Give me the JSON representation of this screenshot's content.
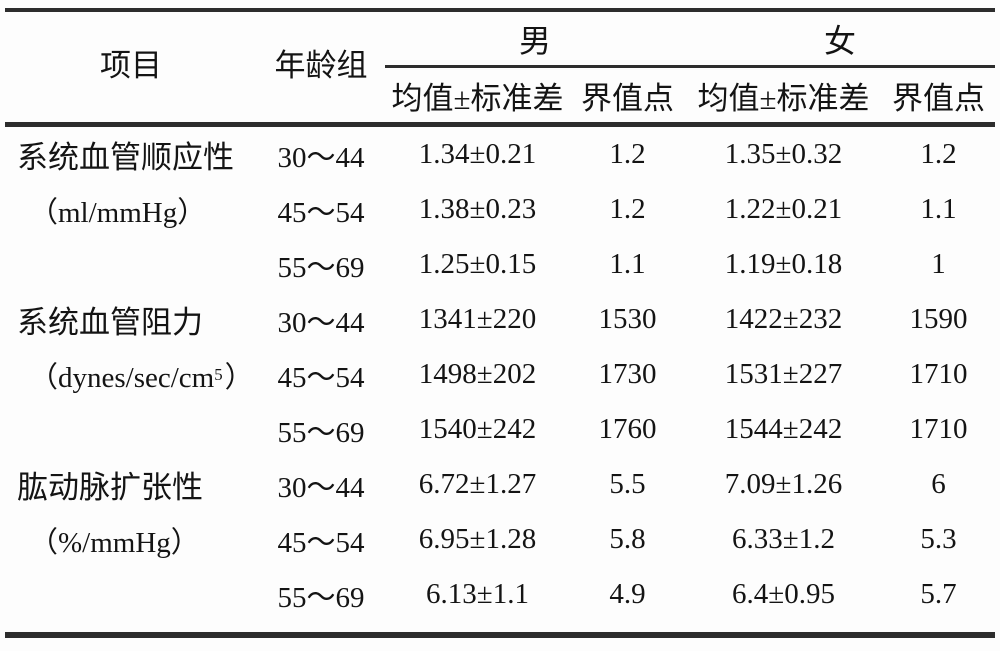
{
  "table": {
    "header": {
      "item": "项目",
      "age_group": "年龄组",
      "male": "男",
      "female": "女",
      "sub_mean_sd_male": "均值±标准差",
      "sub_cutoff_male": "界值点",
      "sub_mean_sd_female": "均值±标准差",
      "sub_cutoff_female": "界值点"
    },
    "rows": [
      {
        "item": "系统血管顺应性",
        "age": "30～44",
        "m_mean": "1.34±0.21",
        "m_cut": "1.2",
        "f_mean": "1.35±0.32",
        "f_cut": "1.2"
      },
      {
        "item": "（ml/mmHg）",
        "age": "45～54",
        "m_mean": "1.38±0.23",
        "m_cut": "1.2",
        "f_mean": "1.22±0.21",
        "f_cut": "1.1"
      },
      {
        "item": "",
        "age": "55～69",
        "m_mean": "1.25±0.15",
        "m_cut": "1.1",
        "f_mean": "1.19±0.18",
        "f_cut": "1"
      },
      {
        "item": "系统血管阻力",
        "age": "30～44",
        "m_mean": "1341±220",
        "m_cut": "1530",
        "f_mean": "1422±232",
        "f_cut": "1590"
      },
      {
        "item_pre": "（dynes/sec/cm",
        "item_sup": "5",
        "item_post": "）",
        "age": "45～54",
        "m_mean": "1498±202",
        "m_cut": "1730",
        "f_mean": "1531±227",
        "f_cut": "1710"
      },
      {
        "item": "",
        "age": "55～69",
        "m_mean": "1540±242",
        "m_cut": "1760",
        "f_mean": "1544±242",
        "f_cut": "1710"
      },
      {
        "item": "肱动脉扩张性",
        "age": "30～44",
        "m_mean": "6.72±1.27",
        "m_cut": "5.5",
        "f_mean": "7.09±1.26",
        "f_cut": "6"
      },
      {
        "item": "（%/mmHg）",
        "age": "45～54",
        "m_mean": "6.95±1.28",
        "m_cut": "5.8",
        "f_mean": "6.33±1.2",
        "f_cut": "5.3"
      },
      {
        "item": "",
        "age": "55～69",
        "m_mean": "6.13±1.1",
        "m_cut": "4.9",
        "f_mean": "6.4±0.95",
        "f_cut": "5.7"
      }
    ]
  },
  "colors": {
    "rule": "#2d2d2d",
    "text": "#141414",
    "background": "#fdfdfd"
  },
  "chart_data": {
    "type": "table",
    "title": "",
    "columns": [
      "项目",
      "年龄组",
      "男 均值±标准差",
      "男 界值点",
      "女 均值±标准差",
      "女 界值点"
    ],
    "rows": [
      [
        "系统血管顺应性（ml/mmHg）",
        "30～44",
        "1.34±0.21",
        "1.2",
        "1.35±0.32",
        "1.2"
      ],
      [
        "系统血管顺应性（ml/mmHg）",
        "45～54",
        "1.38±0.23",
        "1.2",
        "1.22±0.21",
        "1.1"
      ],
      [
        "系统血管顺应性（ml/mmHg）",
        "55～69",
        "1.25±0.15",
        "1.1",
        "1.19±0.18",
        "1"
      ],
      [
        "系统血管阻力（dynes/sec/cm⁵）",
        "30～44",
        "1341±220",
        "1530",
        "1422±232",
        "1590"
      ],
      [
        "系统血管阻力（dynes/sec/cm⁵）",
        "45～54",
        "1498±202",
        "1730",
        "1531±227",
        "1710"
      ],
      [
        "系统血管阻力（dynes/sec/cm⁵）",
        "55～69",
        "1540±242",
        "1760",
        "1544±242",
        "1710"
      ],
      [
        "肱动脉扩张性（%/mmHg）",
        "30～44",
        "6.72±1.27",
        "5.5",
        "7.09±1.26",
        "6"
      ],
      [
        "肱动脉扩张性（%/mmHg）",
        "45～54",
        "6.95±1.28",
        "5.8",
        "6.33±1.2",
        "5.3"
      ],
      [
        "肱动脉扩张性（%/mmHg）",
        "55～69",
        "6.13±1.1",
        "4.9",
        "6.4±0.95",
        "5.7"
      ]
    ]
  }
}
